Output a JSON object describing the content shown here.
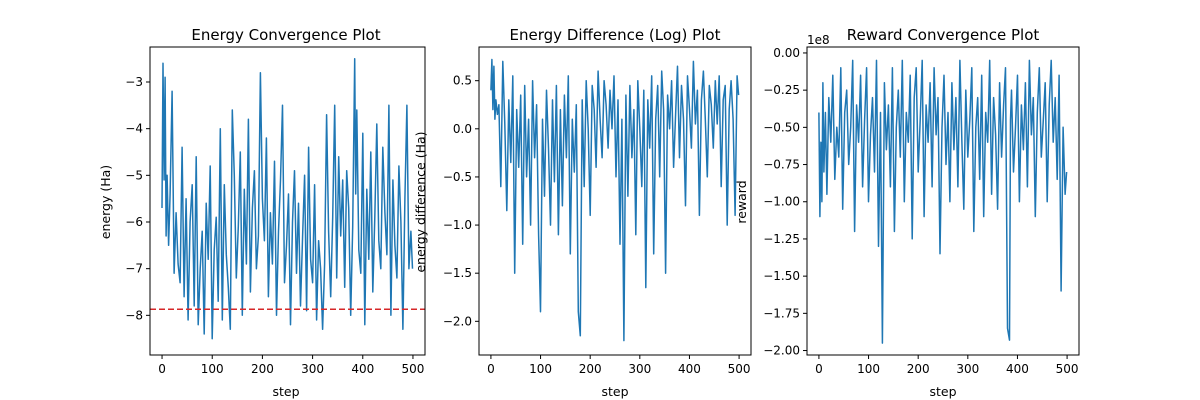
{
  "chart_data": [
    {
      "type": "line",
      "title": "Energy Convergence Plot",
      "xlabel": "step",
      "ylabel": "energy (Ha)",
      "offset_text": "",
      "xlim": [
        -24,
        524
      ],
      "ylim": [
        -8.85,
        -2.25
      ],
      "xticks": [
        0,
        100,
        200,
        300,
        400,
        500
      ],
      "xtick_labels": [
        "0",
        "100",
        "200",
        "300",
        "400",
        "500"
      ],
      "yticks": [
        -8,
        -7,
        -6,
        -5,
        -4,
        -3
      ],
      "ytick_labels": [
        "−8",
        "−7",
        "−6",
        "−5",
        "−4",
        "−3"
      ],
      "series": [
        {
          "color": "#1f77b4",
          "x": [
            0,
            2,
            4,
            6,
            8,
            10,
            13,
            16,
            20,
            24,
            28,
            32,
            36,
            40,
            44,
            48,
            52,
            56,
            60,
            64,
            68,
            72,
            76,
            80,
            84,
            88,
            92,
            96,
            100,
            104,
            108,
            112,
            116,
            120,
            124,
            128,
            132,
            136,
            140,
            144,
            148,
            152,
            156,
            160,
            164,
            168,
            172,
            176,
            180,
            184,
            188,
            192,
            196,
            200,
            204,
            208,
            212,
            216,
            220,
            224,
            228,
            232,
            236,
            240,
            244,
            248,
            252,
            256,
            260,
            264,
            268,
            272,
            276,
            280,
            284,
            288,
            292,
            296,
            300,
            304,
            308,
            312,
            316,
            320,
            324,
            328,
            332,
            336,
            340,
            344,
            348,
            352,
            356,
            360,
            364,
            368,
            372,
            376,
            380,
            384,
            386,
            388,
            392,
            396,
            400,
            404,
            408,
            412,
            416,
            420,
            424,
            428,
            432,
            436,
            440,
            444,
            448,
            452,
            456,
            460,
            464,
            468,
            472,
            476,
            480,
            484,
            488,
            492,
            496,
            499
          ],
          "y": [
            -5.7,
            -2.6,
            -5.1,
            -2.9,
            -6.3,
            -5.0,
            -6.5,
            -5.4,
            -3.2,
            -7.1,
            -5.8,
            -6.9,
            -7.3,
            -4.4,
            -7.6,
            -5.5,
            -8.1,
            -6.0,
            -5.2,
            -7.8,
            -4.6,
            -8.2,
            -7.0,
            -6.2,
            -8.4,
            -5.6,
            -6.8,
            -4.8,
            -8.5,
            -6.6,
            -5.9,
            -7.7,
            -4.0,
            -8.1,
            -5.2,
            -6.7,
            -7.4,
            -8.3,
            -3.6,
            -5.0,
            -7.2,
            -6.1,
            -4.5,
            -8.0,
            -5.3,
            -6.9,
            -3.8,
            -7.5,
            -5.7,
            -4.9,
            -7.0,
            -6.3,
            -2.8,
            -5.5,
            -6.4,
            -4.2,
            -7.6,
            -5.8,
            -6.9,
            -4.7,
            -8.0,
            -6.2,
            -5.1,
            -3.5,
            -7.3,
            -6.5,
            -5.4,
            -8.2,
            -6.0,
            -4.9,
            -7.1,
            -5.6,
            -7.8,
            -6.3,
            -5.0,
            -7.9,
            -4.4,
            -6.8,
            -7.3,
            -5.2,
            -8.1,
            -6.4,
            -7.0,
            -8.3,
            -6.9,
            -3.7,
            -6.2,
            -7.6,
            -5.9,
            -3.5,
            -7.2,
            -4.6,
            -6.3,
            -5.1,
            -7.4,
            -4.9,
            -5.7,
            -8.0,
            -6.1,
            -2.5,
            -5.4,
            -3.6,
            -6.6,
            -7.1,
            -4.1,
            -8.2,
            -5.3,
            -6.8,
            -4.5,
            -7.5,
            -5.9,
            -3.9,
            -6.4,
            -7.0,
            -4.4,
            -5.8,
            -6.7,
            -3.5,
            -8.0,
            -5.1,
            -6.5,
            -7.2,
            -4.8,
            -6.0,
            -8.3,
            -5.5,
            -3.5,
            -7.0,
            -6.2,
            -7.0
          ],
          "style": "solid"
        }
      ],
      "reference_lines": [
        {
          "orientation": "horizontal",
          "y": -7.87,
          "color": "#d62728",
          "style": "dashed"
        }
      ],
      "grid": false,
      "legend": "none"
    },
    {
      "type": "line",
      "title": "Energy Difference (Log) Plot",
      "xlabel": "step",
      "ylabel": "energy difference (Ha)",
      "offset_text": "",
      "xlim": [
        -24,
        524
      ],
      "ylim": [
        -2.35,
        0.85
      ],
      "xticks": [
        0,
        100,
        200,
        300,
        400,
        500
      ],
      "xtick_labels": [
        "0",
        "100",
        "200",
        "300",
        "400",
        "500"
      ],
      "yticks": [
        -2.0,
        -1.5,
        -1.0,
        -0.5,
        0.0,
        0.5
      ],
      "ytick_labels": [
        "−2.0",
        "−1.5",
        "−1.0",
        "−0.5",
        "0.0",
        "0.5"
      ],
      "series": [
        {
          "color": "#1f77b4",
          "x": [
            0,
            2,
            4,
            6,
            8,
            10,
            13,
            16,
            20,
            24,
            28,
            32,
            36,
            40,
            44,
            48,
            52,
            56,
            60,
            64,
            68,
            72,
            76,
            80,
            84,
            88,
            92,
            96,
            100,
            104,
            108,
            112,
            116,
            120,
            124,
            128,
            132,
            136,
            140,
            144,
            148,
            152,
            156,
            160,
            164,
            168,
            172,
            176,
            180,
            184,
            188,
            192,
            196,
            200,
            204,
            208,
            212,
            216,
            220,
            224,
            228,
            232,
            236,
            240,
            244,
            248,
            252,
            256,
            260,
            264,
            268,
            272,
            276,
            280,
            284,
            288,
            292,
            296,
            300,
            304,
            308,
            312,
            316,
            320,
            324,
            328,
            332,
            336,
            340,
            344,
            348,
            352,
            356,
            360,
            364,
            368,
            372,
            376,
            380,
            384,
            388,
            392,
            396,
            400,
            404,
            408,
            412,
            416,
            420,
            424,
            428,
            432,
            436,
            440,
            444,
            448,
            452,
            456,
            460,
            464,
            468,
            472,
            476,
            480,
            484,
            488,
            492,
            496,
            499
          ],
          "y": [
            0.4,
            0.72,
            0.2,
            0.65,
            0.1,
            0.3,
            0.15,
            0.25,
            -0.6,
            0.7,
            0.05,
            -0.85,
            0.3,
            -0.35,
            0.55,
            -1.5,
            0.2,
            -0.4,
            0.35,
            -1.2,
            0.45,
            -0.5,
            0.1,
            -1.0,
            0.5,
            -0.3,
            0.25,
            -1.1,
            -1.9,
            0.1,
            -0.7,
            0.4,
            -0.2,
            -1.0,
            0.3,
            -0.55,
            0.45,
            -1.1,
            0.2,
            -0.8,
            0.35,
            -0.3,
            0.55,
            -1.3,
            0.1,
            -0.45,
            0.25,
            -1.9,
            -2.15,
            0.3,
            -0.6,
            0.5,
            0.0,
            -0.9,
            0.45,
            0.2,
            -0.4,
            0.6,
            0.1,
            -0.3,
            0.5,
            0.25,
            -0.2,
            0.4,
            0.0,
            0.55,
            -0.5,
            0.3,
            -1.2,
            0.1,
            -2.2,
            0.35,
            -0.7,
            0.45,
            -0.3,
            0.2,
            -1.1,
            0.5,
            0.0,
            -0.6,
            0.4,
            -1.65,
            0.3,
            -0.2,
            0.55,
            -1.3,
            0.1,
            0.45,
            -0.5,
            0.6,
            0.2,
            -1.5,
            0.35,
            0.0,
            0.5,
            -0.4,
            0.15,
            0.65,
            -0.3,
            0.45,
            0.1,
            -0.8,
            0.55,
            0.2,
            -0.2,
            0.7,
            0.05,
            0.4,
            -0.9,
            0.3,
            0.6,
            0.1,
            -0.5,
            0.45,
            0.25,
            -0.2,
            0.5,
            0.05,
            0.55,
            -0.6,
            0.3,
            0.45,
            -1.0,
            0.2,
            0.5,
            0.1,
            -0.9,
            0.55,
            0.35
          ],
          "style": "solid"
        }
      ],
      "reference_lines": [],
      "grid": false,
      "legend": "none"
    },
    {
      "type": "line",
      "title": "Reward Convergence Plot",
      "xlabel": "step",
      "ylabel": "reward",
      "offset_text": "1e8",
      "xlim": [
        -24,
        524
      ],
      "ylim": [
        -2.03,
        0.04
      ],
      "xticks": [
        0,
        100,
        200,
        300,
        400,
        500
      ],
      "xtick_labels": [
        "0",
        "100",
        "200",
        "300",
        "400",
        "500"
      ],
      "yticks": [
        -2.0,
        -1.75,
        -1.5,
        -1.25,
        -1.0,
        -0.75,
        -0.5,
        -0.25,
        0.0
      ],
      "ytick_labels": [
        "−2.00",
        "−1.75",
        "−1.50",
        "−1.25",
        "−1.00",
        "−0.75",
        "−0.50",
        "−0.25",
        "0.00"
      ],
      "series": [
        {
          "color": "#1f77b4",
          "x": [
            0,
            2,
            4,
            6,
            8,
            10,
            13,
            16,
            20,
            24,
            28,
            32,
            36,
            40,
            44,
            48,
            52,
            56,
            60,
            64,
            68,
            72,
            76,
            80,
            84,
            88,
            92,
            96,
            100,
            104,
            108,
            112,
            116,
            120,
            124,
            128,
            132,
            136,
            140,
            144,
            148,
            152,
            156,
            160,
            164,
            168,
            172,
            176,
            180,
            184,
            188,
            192,
            196,
            200,
            204,
            208,
            212,
            216,
            220,
            224,
            228,
            232,
            236,
            240,
            244,
            248,
            252,
            256,
            260,
            264,
            268,
            272,
            276,
            280,
            284,
            288,
            292,
            296,
            300,
            304,
            308,
            312,
            316,
            320,
            324,
            328,
            332,
            336,
            340,
            344,
            348,
            352,
            356,
            360,
            364,
            368,
            372,
            376,
            380,
            384,
            386,
            388,
            392,
            396,
            400,
            404,
            408,
            412,
            416,
            420,
            424,
            428,
            432,
            436,
            440,
            444,
            448,
            452,
            456,
            460,
            464,
            468,
            472,
            476,
            480,
            484,
            488,
            492,
            496,
            499
          ],
          "y": [
            -0.4,
            -1.1,
            -0.6,
            -1.0,
            -0.2,
            -0.8,
            -0.4,
            -0.95,
            -0.3,
            -0.6,
            -0.15,
            -0.85,
            -0.5,
            -0.7,
            -0.1,
            -1.05,
            -0.4,
            -0.25,
            -0.75,
            -0.5,
            -0.05,
            -1.2,
            -0.35,
            -0.6,
            -0.15,
            -0.9,
            -0.45,
            -0.1,
            -1.0,
            -0.55,
            -0.3,
            -0.8,
            -0.05,
            -1.3,
            -0.4,
            -1.95,
            -0.2,
            -0.65,
            -0.35,
            -0.9,
            -0.1,
            -1.2,
            -0.5,
            -0.25,
            -0.7,
            -0.05,
            -1.0,
            -0.4,
            -0.6,
            -0.15,
            -1.25,
            -0.3,
            -0.1,
            -0.8,
            -0.45,
            -0.05,
            -1.1,
            -0.35,
            -0.6,
            -0.2,
            -0.9,
            -0.1,
            -0.55,
            -0.3,
            -1.35,
            -0.5,
            -0.15,
            -0.75,
            -0.4,
            -1.0,
            -0.2,
            -0.65,
            -0.3,
            -0.9,
            -0.05,
            -0.6,
            -1.05,
            -0.25,
            -0.7,
            -0.45,
            -0.1,
            -1.2,
            -0.5,
            -0.3,
            -0.85,
            -0.15,
            -1.1,
            -0.4,
            -0.6,
            -0.05,
            -0.95,
            -0.3,
            -0.55,
            -1.05,
            -0.2,
            -0.7,
            -0.35,
            -0.1,
            -1.85,
            -1.93,
            -0.45,
            -0.25,
            -0.8,
            -0.5,
            -0.15,
            -1.0,
            -0.35,
            -0.65,
            -0.2,
            -0.9,
            -0.05,
            -0.55,
            -0.3,
            -1.1,
            -0.4,
            -0.1,
            -0.7,
            -0.45,
            -0.2,
            -1.0,
            -0.35,
            -0.05,
            -0.6,
            -0.3,
            -0.85,
            -0.15,
            -1.6,
            -0.5,
            -0.95,
            -0.8
          ],
          "style": "solid"
        }
      ],
      "reference_lines": [],
      "grid": false,
      "legend": "none"
    }
  ]
}
